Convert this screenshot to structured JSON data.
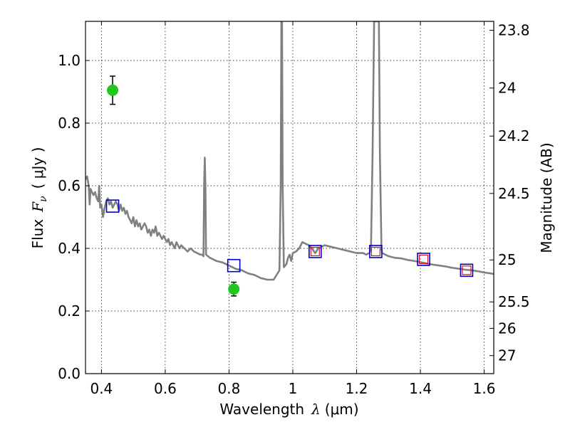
{
  "chart_data": {
    "type": "line",
    "xlabel_text": "Wavelength",
    "xlabel_symbol": "λ",
    "xlabel_unit": "(μm)",
    "ylabel_text": "Flux",
    "ylabel_symbol": "F",
    "ylabel_symbol_sub": "ν",
    "ylabel_unit": "( μJy )",
    "y2label": "Magnitude (AB)",
    "xlim": [
      0.35,
      1.63
    ],
    "ylim": [
      0.0,
      1.125
    ],
    "grid": true,
    "x_ticks": [
      {
        "value": 0.4,
        "label": "0.4"
      },
      {
        "value": 0.6,
        "label": "0.6"
      },
      {
        "value": 0.8,
        "label": "0.8"
      },
      {
        "value": 1.0,
        "label": "1"
      },
      {
        "value": 1.2,
        "label": "1.2"
      },
      {
        "value": 1.4,
        "label": "1.4"
      },
      {
        "value": 1.6,
        "label": "1.6"
      }
    ],
    "y_ticks": [
      {
        "value": 0.0,
        "label": "0.0"
      },
      {
        "value": 0.2,
        "label": "0.2"
      },
      {
        "value": 0.4,
        "label": "0.4"
      },
      {
        "value": 0.6,
        "label": "0.6"
      },
      {
        "value": 0.8,
        "label": "0.8"
      },
      {
        "value": 1.0,
        "label": "1.0"
      }
    ],
    "y2_ticks": [
      {
        "mag": 23.8,
        "label": "23.8"
      },
      {
        "mag": 24,
        "label": "24"
      },
      {
        "mag": 24.2,
        "label": "24.2"
      },
      {
        "mag": 24.5,
        "label": "24.5"
      },
      {
        "mag": 25,
        "label": "25"
      },
      {
        "mag": 25.5,
        "label": "25.5"
      },
      {
        "mag": 26,
        "label": "26"
      },
      {
        "mag": 27,
        "label": "27"
      }
    ],
    "series": [
      {
        "name": "model_spectrum",
        "kind": "line",
        "color": "#808080",
        "points": [
          [
            0.35,
            0.62
          ],
          [
            0.355,
            0.63
          ],
          [
            0.36,
            0.6
          ],
          [
            0.363,
            0.54
          ],
          [
            0.366,
            0.59
          ],
          [
            0.37,
            0.58
          ],
          [
            0.375,
            0.57
          ],
          [
            0.38,
            0.58
          ],
          [
            0.385,
            0.56
          ],
          [
            0.39,
            0.55
          ],
          [
            0.393,
            0.6
          ],
          [
            0.396,
            0.53
          ],
          [
            0.4,
            0.54
          ],
          [
            0.405,
            0.5
          ],
          [
            0.41,
            0.53
          ],
          [
            0.415,
            0.55
          ],
          [
            0.42,
            0.56
          ],
          [
            0.425,
            0.54
          ],
          [
            0.43,
            0.55
          ],
          [
            0.435,
            0.53
          ],
          [
            0.44,
            0.54
          ],
          [
            0.445,
            0.55
          ],
          [
            0.45,
            0.54
          ],
          [
            0.455,
            0.52
          ],
          [
            0.46,
            0.54
          ],
          [
            0.465,
            0.52
          ],
          [
            0.47,
            0.53
          ],
          [
            0.475,
            0.51
          ],
          [
            0.48,
            0.52
          ],
          [
            0.485,
            0.5
          ],
          [
            0.49,
            0.49
          ],
          [
            0.495,
            0.48
          ],
          [
            0.5,
            0.5
          ],
          [
            0.505,
            0.47
          ],
          [
            0.51,
            0.49
          ],
          [
            0.515,
            0.47
          ],
          [
            0.52,
            0.48
          ],
          [
            0.525,
            0.46
          ],
          [
            0.53,
            0.47
          ],
          [
            0.535,
            0.48
          ],
          [
            0.54,
            0.47
          ],
          [
            0.545,
            0.45
          ],
          [
            0.55,
            0.46
          ],
          [
            0.555,
            0.44
          ],
          [
            0.56,
            0.46
          ],
          [
            0.565,
            0.45
          ],
          [
            0.57,
            0.47
          ],
          [
            0.575,
            0.44
          ],
          [
            0.58,
            0.45
          ],
          [
            0.585,
            0.44
          ],
          [
            0.59,
            0.43
          ],
          [
            0.595,
            0.44
          ],
          [
            0.6,
            0.43
          ],
          [
            0.605,
            0.42
          ],
          [
            0.61,
            0.43
          ],
          [
            0.615,
            0.41
          ],
          [
            0.62,
            0.42
          ],
          [
            0.625,
            0.41
          ],
          [
            0.63,
            0.4
          ],
          [
            0.635,
            0.42
          ],
          [
            0.64,
            0.41
          ],
          [
            0.645,
            0.4
          ],
          [
            0.65,
            0.41
          ],
          [
            0.66,
            0.4
          ],
          [
            0.67,
            0.39
          ],
          [
            0.68,
            0.4
          ],
          [
            0.69,
            0.39
          ],
          [
            0.7,
            0.385
          ],
          [
            0.71,
            0.38
          ],
          [
            0.715,
            0.38
          ],
          [
            0.72,
            0.375
          ],
          [
            0.722,
            0.6
          ],
          [
            0.724,
            0.69
          ],
          [
            0.726,
            0.6
          ],
          [
            0.728,
            0.38
          ],
          [
            0.74,
            0.37
          ],
          [
            0.76,
            0.36
          ],
          [
            0.78,
            0.355
          ],
          [
            0.8,
            0.345
          ],
          [
            0.82,
            0.335
          ],
          [
            0.84,
            0.33
          ],
          [
            0.86,
            0.32
          ],
          [
            0.88,
            0.315
          ],
          [
            0.9,
            0.305
          ],
          [
            0.92,
            0.3
          ],
          [
            0.94,
            0.3
          ],
          [
            0.958,
            0.33
          ],
          [
            0.962,
            0.6
          ],
          [
            0.964,
            1.125
          ],
          [
            0.966,
            1.125
          ],
          [
            0.968,
            0.6
          ],
          [
            0.972,
            0.34
          ],
          [
            0.98,
            0.35
          ],
          [
            0.985,
            0.37
          ],
          [
            0.99,
            0.38
          ],
          [
            0.995,
            0.36
          ],
          [
            1.0,
            0.385
          ],
          [
            1.01,
            0.39
          ],
          [
            1.02,
            0.4
          ],
          [
            1.03,
            0.42
          ],
          [
            1.04,
            0.415
          ],
          [
            1.05,
            0.41
          ],
          [
            1.06,
            0.4
          ],
          [
            1.07,
            0.385
          ],
          [
            1.08,
            0.4
          ],
          [
            1.1,
            0.41
          ],
          [
            1.12,
            0.405
          ],
          [
            1.14,
            0.4
          ],
          [
            1.16,
            0.395
          ],
          [
            1.18,
            0.39
          ],
          [
            1.2,
            0.385
          ],
          [
            1.22,
            0.385
          ],
          [
            1.23,
            0.38
          ],
          [
            1.24,
            0.385
          ],
          [
            1.245,
            0.4
          ],
          [
            1.25,
            0.7
          ],
          [
            1.255,
            1.125
          ],
          [
            1.27,
            1.125
          ],
          [
            1.273,
            0.7
          ],
          [
            1.278,
            0.4
          ],
          [
            1.28,
            0.385
          ],
          [
            1.3,
            0.375
          ],
          [
            1.32,
            0.37
          ],
          [
            1.34,
            0.368
          ],
          [
            1.36,
            0.363
          ],
          [
            1.38,
            0.36
          ],
          [
            1.4,
            0.356
          ],
          [
            1.42,
            0.352
          ],
          [
            1.44,
            0.348
          ],
          [
            1.46,
            0.345
          ],
          [
            1.48,
            0.342
          ],
          [
            1.5,
            0.338
          ],
          [
            1.52,
            0.335
          ],
          [
            1.54,
            0.332
          ],
          [
            1.56,
            0.33
          ],
          [
            1.58,
            0.327
          ],
          [
            1.6,
            0.323
          ],
          [
            1.62,
            0.32
          ],
          [
            1.63,
            0.318
          ]
        ]
      },
      {
        "name": "observed_photometry",
        "kind": "errorbar",
        "color": "#22c71c",
        "points": [
          {
            "x": 0.435,
            "y": 0.905,
            "err": 0.045
          },
          {
            "x": 0.815,
            "y": 0.27,
            "err": 0.022
          }
        ]
      },
      {
        "name": "model_photometry",
        "kind": "square",
        "color": "#0000cc",
        "points": [
          [
            0.435,
            0.535
          ],
          [
            0.815,
            0.345
          ],
          [
            1.07,
            0.39
          ],
          [
            1.26,
            0.39
          ],
          [
            1.41,
            0.365
          ],
          [
            1.545,
            0.33
          ]
        ]
      },
      {
        "name": "model_photometry_inner",
        "kind": "square_small",
        "color": "#e01010",
        "points": [
          [
            1.07,
            0.39
          ],
          [
            1.26,
            0.39
          ],
          [
            1.41,
            0.365
          ],
          [
            1.545,
            0.33
          ]
        ]
      }
    ]
  }
}
